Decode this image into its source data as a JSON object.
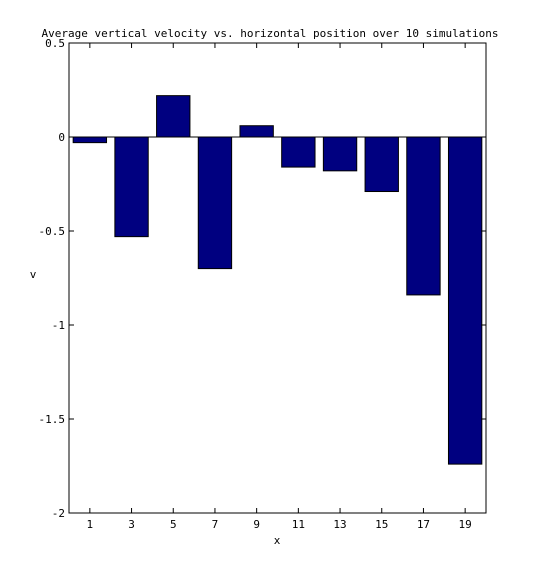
{
  "chart_data": {
    "type": "bar",
    "title": "Average vertical velocity vs. horizontal position over 10 simulations",
    "xlabel": "x",
    "ylabel": "v",
    "categories": [
      "1",
      "3",
      "5",
      "7",
      "9",
      "11",
      "13",
      "15",
      "17",
      "19"
    ],
    "values": [
      -0.03,
      -0.53,
      0.22,
      -0.7,
      0.06,
      -0.16,
      -0.18,
      -0.29,
      -0.84,
      -1.74
    ],
    "ylim": [
      -2,
      0.5
    ],
    "yticks": [
      "0.5",
      "0",
      "-0.5",
      "-1",
      "-1.5",
      "-2"
    ],
    "grid": false,
    "bar_color": "#000080"
  }
}
